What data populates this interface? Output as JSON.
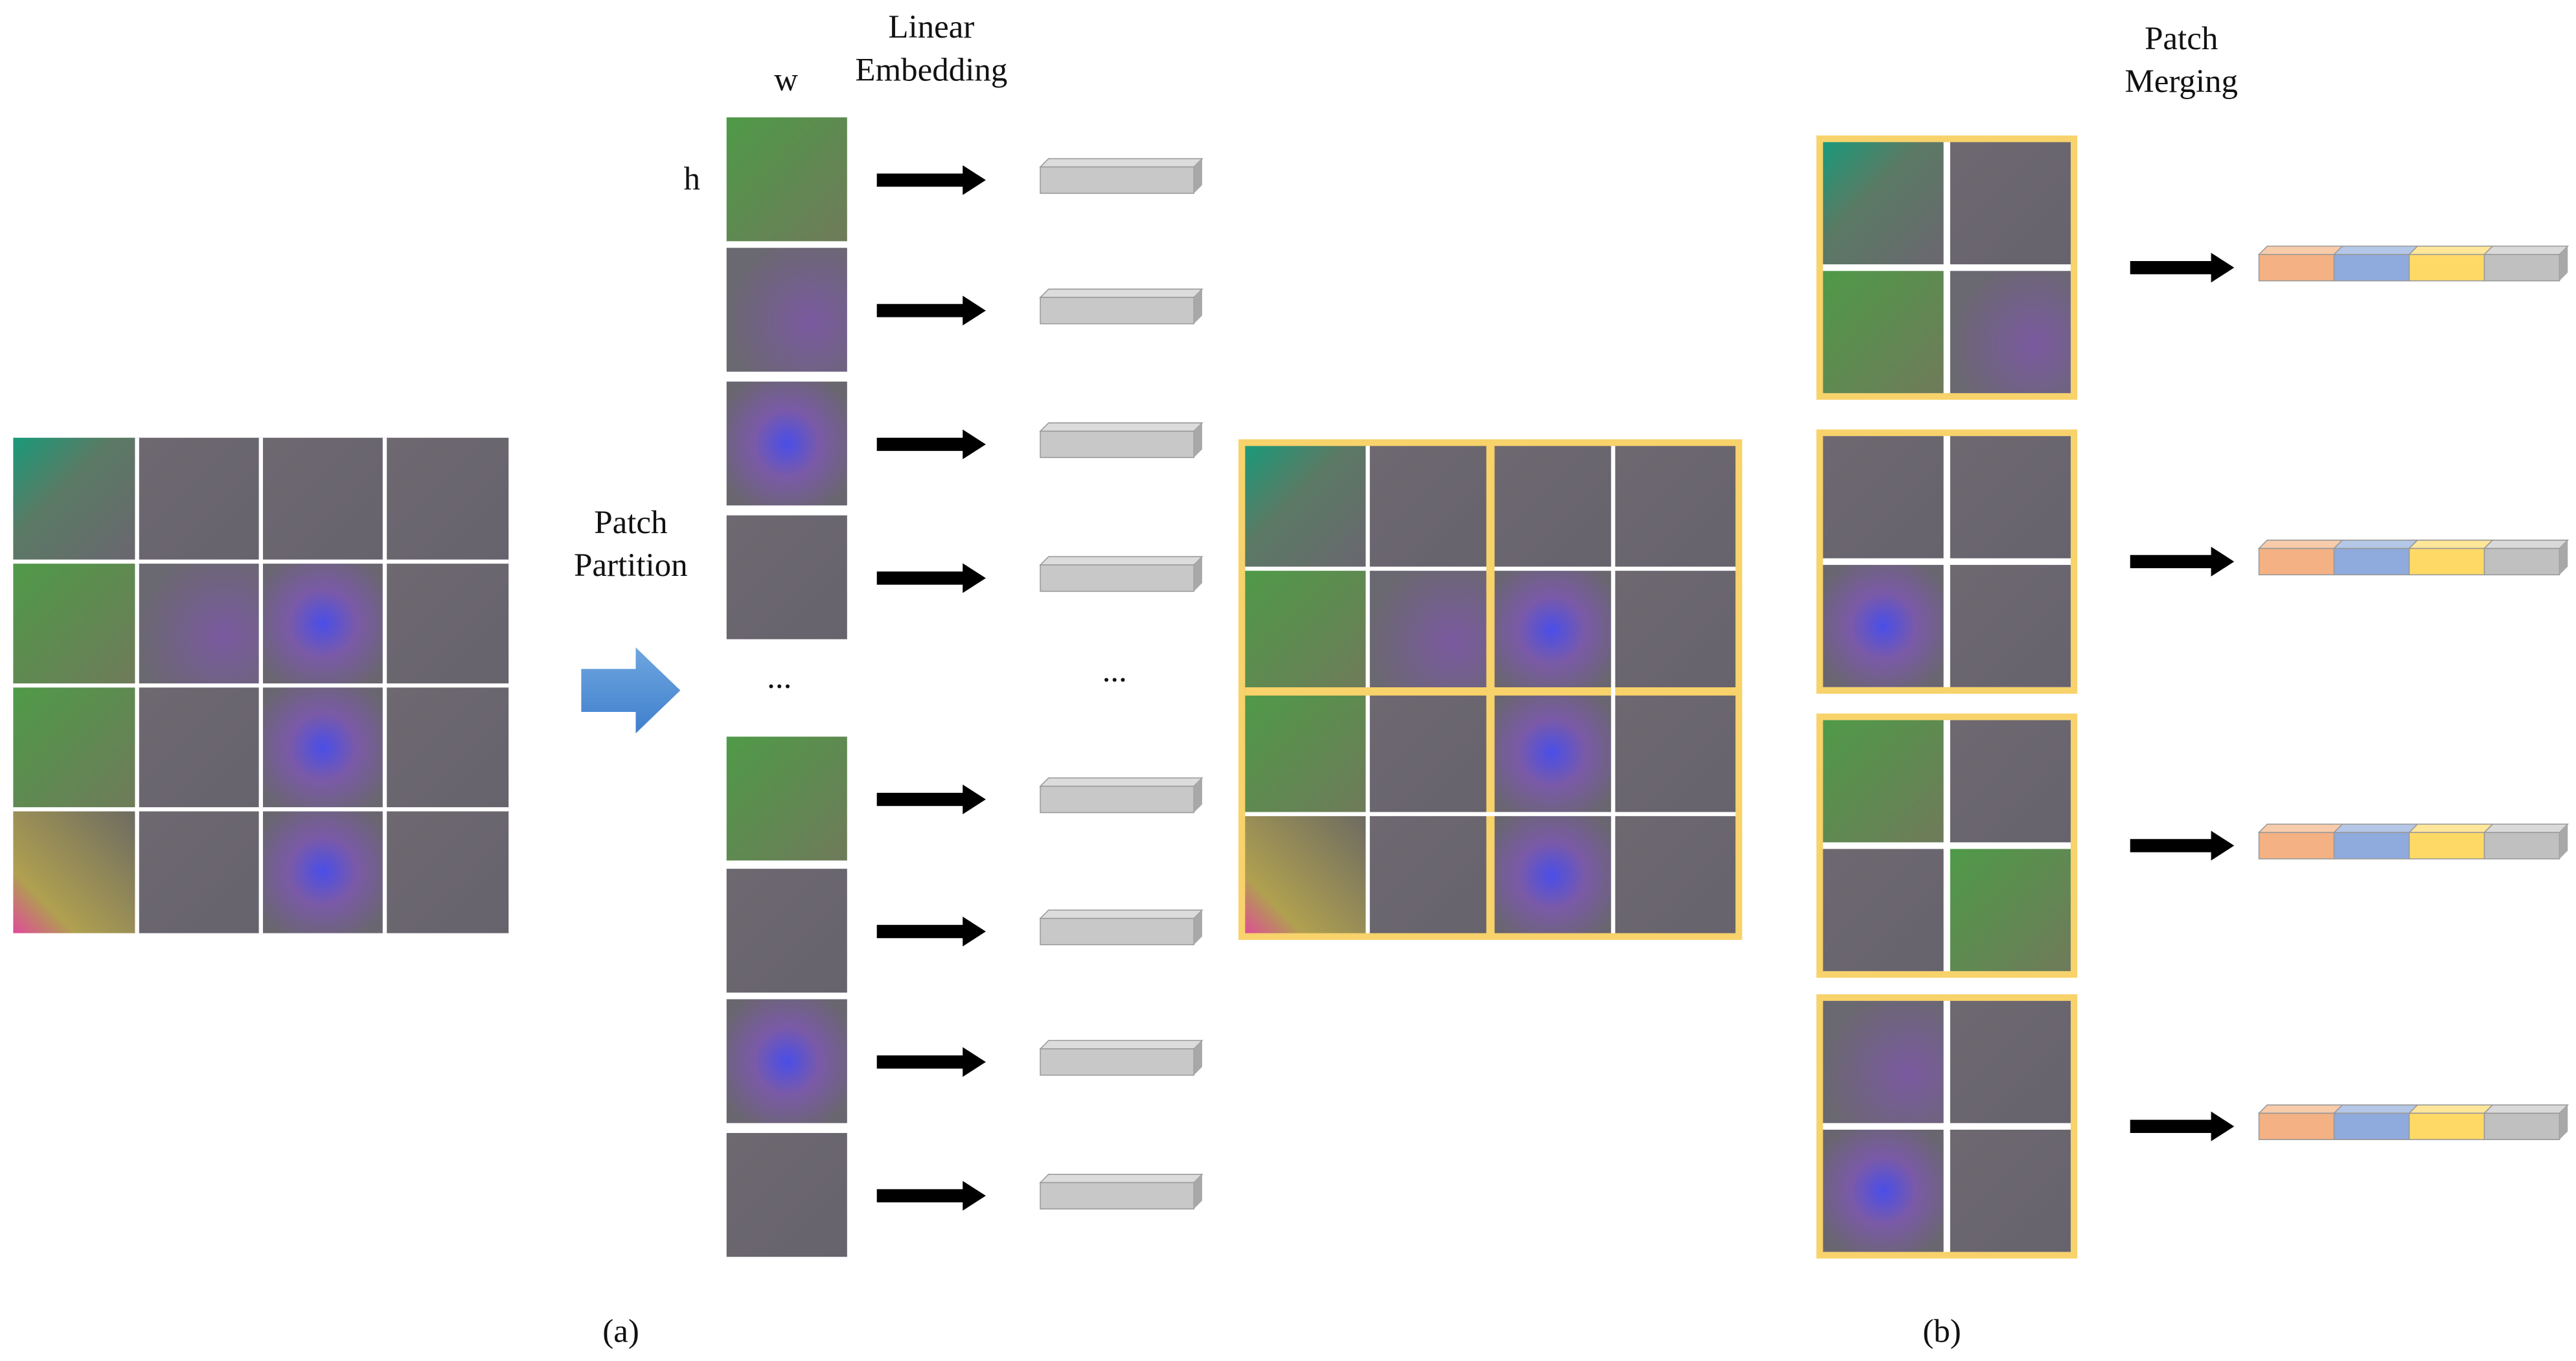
{
  "labels": {
    "w": "w",
    "h": "h",
    "linear_embedding": [
      "Linear",
      "Embedding"
    ],
    "patch_partition": [
      "Patch",
      "Partition"
    ],
    "ellipsis_patches": "...",
    "ellipsis_tokens": "...",
    "patch_merging": [
      "Patch",
      "Merging"
    ],
    "caption_a": "(a)",
    "caption_b": "(b)"
  }
}
